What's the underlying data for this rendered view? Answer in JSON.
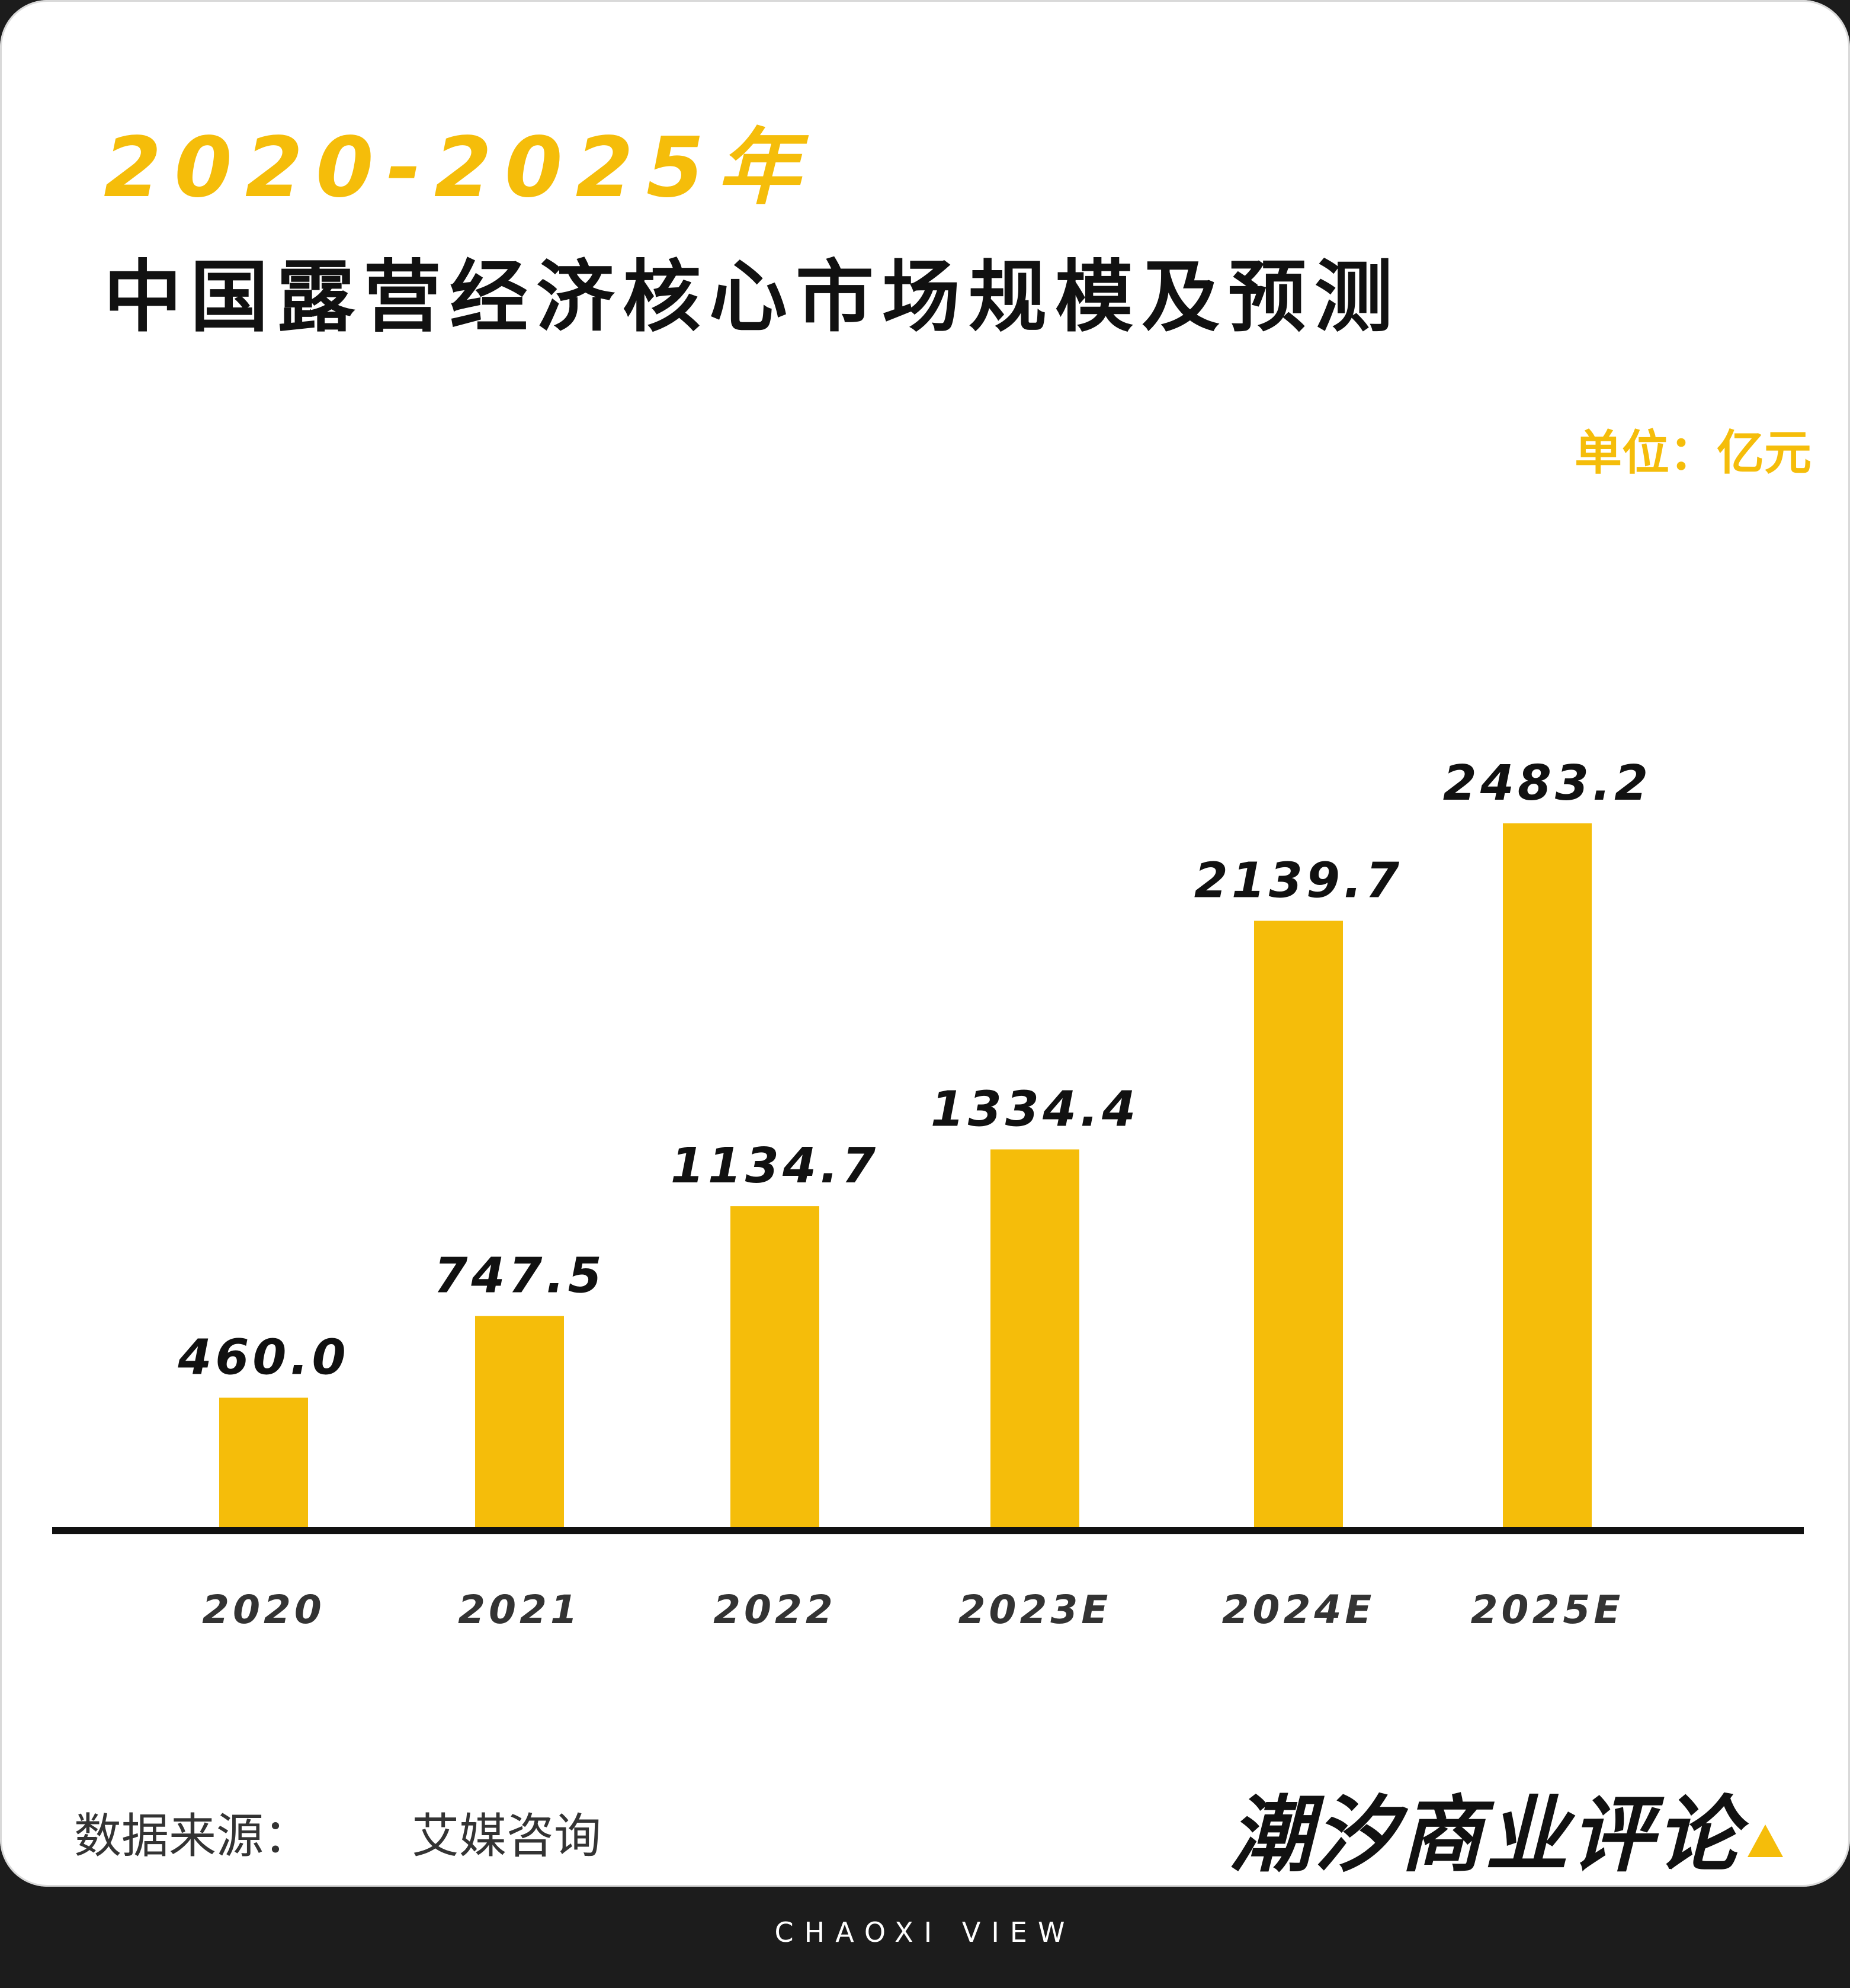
{
  "header": {
    "year_range": "2020-2025年",
    "title": "中国露营经济核心市场规模及预测",
    "unit": "单位：亿元"
  },
  "chart_data": {
    "type": "bar",
    "title": "2020-2025年 中国露营经济核心市场规模及预测",
    "categories": [
      "2020",
      "2021",
      "2022",
      "2023E",
      "2024E",
      "2025E"
    ],
    "values": [
      460.0,
      747.5,
      1134.7,
      1334.4,
      2139.7,
      2483.2
    ],
    "value_labels": [
      "460.0",
      "747.5",
      "1134.7",
      "1334.4",
      "2139.7",
      "2483.2"
    ],
    "xlabel": "",
    "ylabel": "",
    "unit": "亿元",
    "ylim": [
      0,
      2900
    ],
    "grid": false,
    "legend": "none",
    "colors": {
      "bar": "#f5bd0a",
      "axis": "#111111",
      "value_label": "#111111",
      "category_label": "#333333"
    }
  },
  "source": {
    "label": "数据来源：",
    "value": "艾媒咨询"
  },
  "brand": {
    "logo": "潮汐商业评论",
    "footer": "CHAOXI VIEW"
  },
  "colors": {
    "accent": "#f5bd0a",
    "background": "#1c1c1c",
    "card": "#ffffff"
  }
}
